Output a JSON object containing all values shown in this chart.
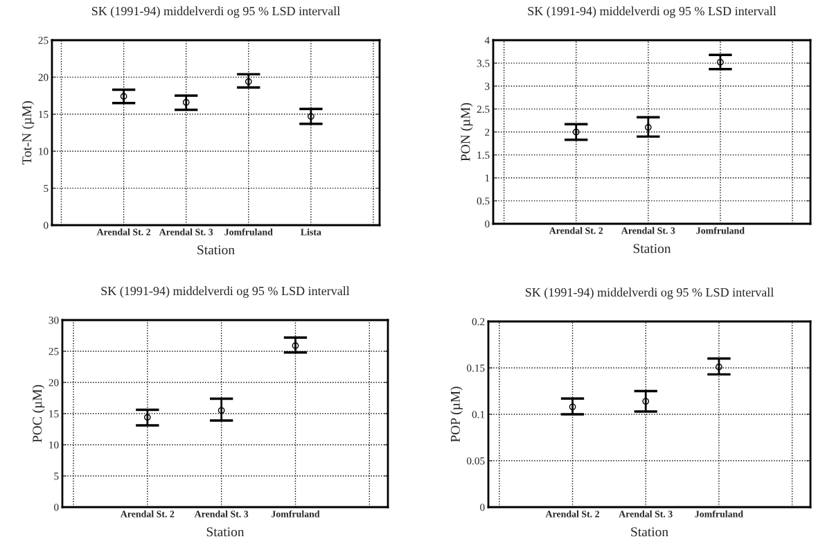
{
  "chart_data": [
    {
      "type": "scatter",
      "title": "SK (1991-94) middelverdi og 95 % LSD intervall",
      "xlabel": "Station",
      "ylabel": "Tot-N (µM)",
      "categories": [
        "Arendal St. 2",
        "Arendal St. 3",
        "Jomfruland",
        "Lista"
      ],
      "series": [
        {
          "color": "#000000",
          "values": [
            17.4,
            16.6,
            19.4,
            14.7
          ],
          "errors": [
            [
              16.5,
              18.3
            ],
            [
              15.6,
              17.5
            ],
            [
              18.6,
              20.4
            ],
            [
              13.7,
              15.7
            ]
          ]
        }
      ],
      "ylim": [
        0,
        25
      ],
      "yticks": [
        0,
        5,
        10,
        15,
        20,
        25
      ],
      "grid": true,
      "marker": "circle"
    },
    {
      "type": "scatter",
      "title": "SK (1991-94) middelverdi og 95 % LSD intervall",
      "xlabel": "Station",
      "ylabel": "PON (µM)",
      "categories": [
        "Arendal St. 2",
        "Arendal St. 3",
        "Jomfruland"
      ],
      "series": [
        {
          "color": "#000000",
          "values": [
            2.0,
            2.1,
            3.52
          ],
          "errors": [
            [
              1.83,
              2.17
            ],
            [
              1.9,
              2.32
            ],
            [
              3.37,
              3.68
            ]
          ]
        }
      ],
      "ylim": [
        0,
        4
      ],
      "yticks": [
        0,
        0.5,
        1,
        1.5,
        2,
        2.5,
        3,
        3.5,
        4
      ],
      "grid": true,
      "marker": "circle"
    },
    {
      "type": "scatter",
      "title": "SK (1991-94) middelverdi og 95 % LSD intervall",
      "xlabel": "Station",
      "ylabel": "POC (µM)",
      "categories": [
        "Arendal St. 2",
        "Arendal St. 3",
        "Jomfruland"
      ],
      "series": [
        {
          "color": "#000000",
          "values": [
            14.4,
            15.5,
            25.9
          ],
          "errors": [
            [
              13.1,
              15.6
            ],
            [
              13.9,
              17.4
            ],
            [
              24.8,
              27.2
            ]
          ]
        }
      ],
      "ylim": [
        0,
        30
      ],
      "yticks": [
        0,
        5,
        10,
        15,
        20,
        25,
        30
      ],
      "grid": true,
      "marker": "circle"
    },
    {
      "type": "scatter",
      "title": "SK (1991-94) middelverdi og 95 % LSD intervall",
      "xlabel": "Station",
      "ylabel": "POP (µM)",
      "categories": [
        "Arendal St. 2",
        "Arendal St. 3",
        "Jomfruland"
      ],
      "series": [
        {
          "color": "#000000",
          "values": [
            0.108,
            0.114,
            0.151
          ],
          "errors": [
            [
              0.1,
              0.117
            ],
            [
              0.103,
              0.125
            ],
            [
              0.143,
              0.16
            ]
          ]
        }
      ],
      "ylim": [
        0,
        0.2
      ],
      "yticks": [
        0,
        0.05,
        0.1,
        0.15,
        0.2
      ],
      "grid": true,
      "marker": "circle"
    }
  ]
}
